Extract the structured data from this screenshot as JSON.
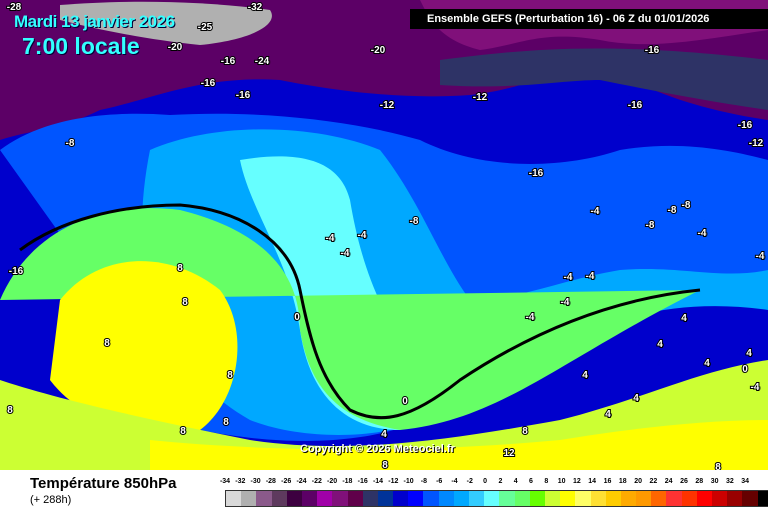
{
  "header": {
    "date": "Mardi 13 janvier 2026",
    "local_time": "7:00 locale",
    "model_title": "Ensemble GEFS  (Perturbation 16)  -  06 Z du 01/01/2026"
  },
  "copyright": "Copyright © 2026 Meteociel.fr",
  "footer": {
    "parameter": "Température 850hPa",
    "lead_time": "(+ 288h)"
  },
  "legend": {
    "ticks": [
      "-34",
      "-32",
      "-30",
      "-28",
      "-26",
      "-24",
      "-22",
      "-20",
      "-18",
      "-16",
      "-14",
      "-12",
      "-10",
      "-8",
      "-6",
      "-4",
      "-2",
      "0",
      "2",
      "4",
      "6",
      "8",
      "10",
      "12",
      "14",
      "16",
      "18",
      "20",
      "22",
      "24",
      "26",
      "28",
      "30",
      "32",
      "34"
    ],
    "colors": [
      "#d9d9d9",
      "#b0b0b0",
      "#8b5a8b",
      "#5e3a5e",
      "#3d0040",
      "#5c0066",
      "#a000a8",
      "#80107a",
      "#60004a",
      "#2e3366",
      "#003399",
      "#0000cc",
      "#0000ff",
      "#0055ff",
      "#0088ff",
      "#00a8ff",
      "#33ccff",
      "#66ffff",
      "#66ff99",
      "#66ff66",
      "#66ff00",
      "#ccff33",
      "#ffff00",
      "#ffff66",
      "#ffe033",
      "#ffcc00",
      "#ffaa00",
      "#ff9900",
      "#ff6600",
      "#ff3333",
      "#ff3300",
      "#ff0000",
      "#cc0000",
      "#990000",
      "#660000",
      "#000000"
    ]
  },
  "map_labels": [
    "-28",
    "-32",
    "-25",
    "-20",
    "-20",
    "-16",
    "-24",
    "-16",
    "-16",
    "-16",
    "-16",
    "-12",
    "-16",
    "-12",
    "-12",
    "-8",
    "-16",
    "-8",
    "-8",
    "-4",
    "-4",
    "-4",
    "-4",
    "-8",
    "-8",
    "-4",
    "-4",
    "-16",
    "8",
    "8",
    "8",
    "8",
    "0",
    "8",
    "8",
    "8",
    "-4",
    "-4",
    "-4",
    "-4",
    "4",
    "4",
    "4",
    "4",
    "4",
    "4",
    "4",
    "0",
    "0",
    "4",
    "8",
    "8",
    "12",
    "8",
    "-4"
  ]
}
